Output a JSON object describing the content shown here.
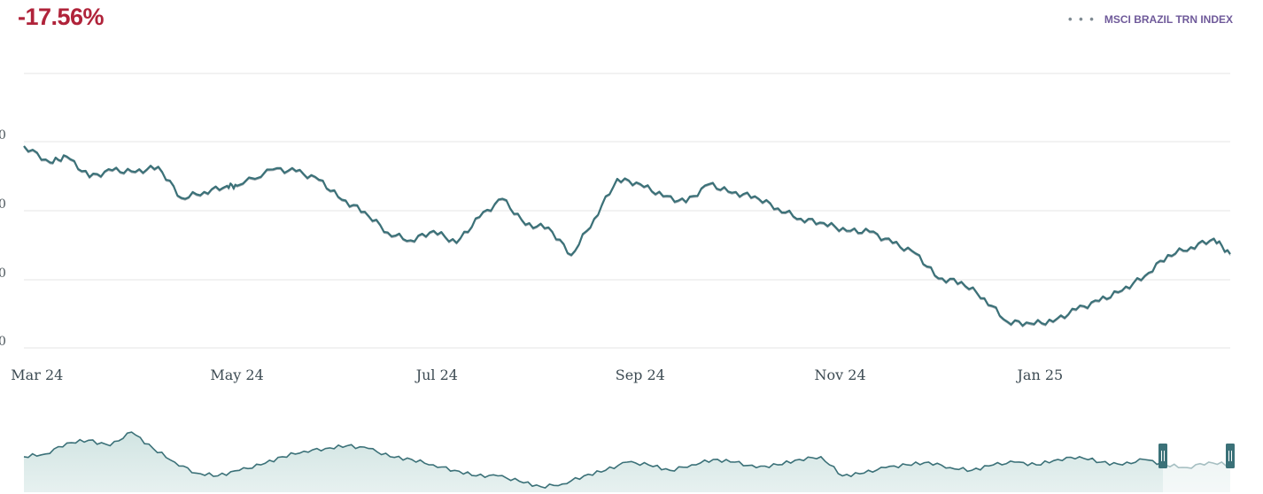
{
  "header": {
    "change_pct": "-17.56%"
  },
  "legend": {
    "dots": "• • •",
    "label": "MSCI BRAZIL TRN INDEX"
  },
  "colors": {
    "line": "#3b7178",
    "navigator_fill": "#cfe3e1",
    "change_negative": "#b0233a",
    "legend_text": "#6f5a9a",
    "grid": "#e6e6e6"
  },
  "chart_data": {
    "type": "line",
    "series": [
      {
        "name": "MSCI BRAZIL TRN INDEX",
        "x": [
          "2024-02-26",
          "2024-03-05",
          "2024-03-10",
          "2024-03-17",
          "2024-03-24",
          "2024-03-31",
          "2024-04-07",
          "2024-04-14",
          "2024-04-21",
          "2024-04-28",
          "2024-05-01",
          "2024-05-12",
          "2024-05-19",
          "2024-05-26",
          "2024-06-02",
          "2024-06-09",
          "2024-06-16",
          "2024-06-23",
          "2024-06-30",
          "2024-07-07",
          "2024-07-14",
          "2024-07-21",
          "2024-07-28",
          "2024-08-04",
          "2024-08-11",
          "2024-08-18",
          "2024-08-25",
          "2024-09-01",
          "2024-09-08",
          "2024-09-15",
          "2024-09-22",
          "2024-09-29",
          "2024-10-06",
          "2024-10-13",
          "2024-10-20",
          "2024-10-27",
          "2024-11-03",
          "2024-11-10",
          "2024-11-17",
          "2024-11-24",
          "2024-12-01",
          "2024-12-08",
          "2024-12-15",
          "2024-12-22",
          "2024-12-29",
          "2025-01-05",
          "2025-01-12",
          "2025-01-19",
          "2025-01-26",
          "2025-02-02",
          "2025-02-09",
          "2025-02-16",
          "2025-02-23",
          "2025-02-28"
        ],
        "values": [
          3.05,
          2.86,
          2.93,
          2.69,
          2.77,
          2.75,
          2.81,
          2.45,
          2.52,
          2.59,
          2.59,
          2.78,
          2.76,
          2.66,
          2.43,
          2.29,
          2.05,
          1.96,
          2.07,
          1.93,
          2.23,
          2.44,
          2.14,
          2.11,
          1.79,
          2.21,
          2.67,
          2.61,
          2.47,
          2.4,
          2.61,
          2.51,
          2.47,
          2.33,
          2.21,
          2.16,
          2.07,
          2.06,
          1.93,
          1.81,
          1.52,
          1.48,
          1.29,
          1.02,
          1.0,
          1.02,
          1.16,
          1.26,
          1.38,
          1.55,
          1.79,
          1.88,
          1.98,
          1.8
        ]
      }
    ],
    "x_tick_labels": [
      "Mar 24",
      "May 24",
      "Jul 24",
      "Sep 24",
      "Nov 24",
      "Jan 25"
    ],
    "y_tick_labels": [
      "0",
      "0",
      "0",
      "0"
    ],
    "navigator": {
      "values": [
        1.3,
        1.4,
        1.8,
        1.9,
        1.7,
        2.2,
        1.6,
        1.1,
        0.7,
        0.6,
        0.8,
        1.0,
        1.3,
        1.5,
        1.6,
        1.7,
        1.6,
        1.3,
        1.2,
        1.0,
        0.8,
        0.6,
        0.6,
        0.4,
        0.2,
        0.3,
        0.6,
        0.8,
        1.1,
        1.0,
        0.8,
        1.0,
        1.2,
        1.1,
        0.9,
        1.0,
        1.2,
        1.3,
        0.6,
        0.7,
        0.9,
        1.0,
        1.1,
        0.9,
        0.8,
        1.0,
        1.1,
        1.0,
        1.2,
        1.3,
        1.1,
        1.0,
        1.2,
        1.0,
        0.9,
        1.1,
        1.0
      ],
      "selection": [
        "2025-02-01",
        "2025-02-28"
      ]
    }
  }
}
